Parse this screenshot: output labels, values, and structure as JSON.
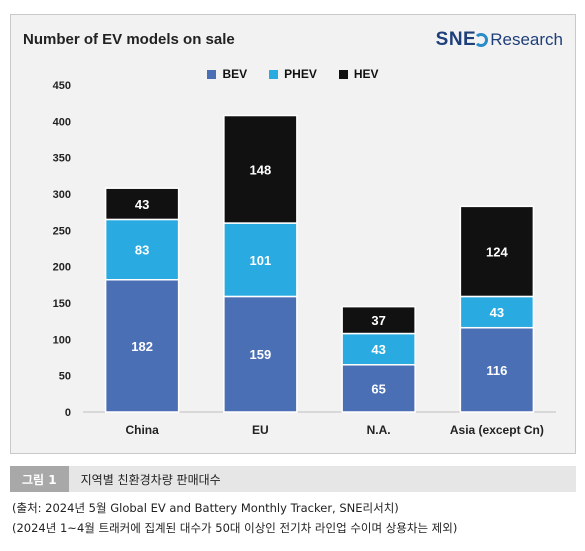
{
  "chart_data": {
    "type": "bar",
    "stacked": true,
    "title": "Number of EV models on sale",
    "categories": [
      "China",
      "EU",
      "N.A.",
      "Asia (except Cn)"
    ],
    "series": [
      {
        "name": "BEV",
        "values": [
          182,
          159,
          65,
          116
        ],
        "color": "#4a6fb5"
      },
      {
        "name": "PHEV",
        "values": [
          83,
          101,
          43,
          43
        ],
        "color": "#29abe2"
      },
      {
        "name": "HEV",
        "values": [
          43,
          148,
          37,
          124
        ],
        "color": "#111111"
      }
    ],
    "ylim": [
      0,
      450
    ],
    "yticks": [
      "0",
      "50",
      "100",
      "150",
      "200",
      "250",
      "300",
      "350",
      "400",
      "450"
    ],
    "grid": false,
    "legend": "top-center"
  },
  "logo": {
    "sne": "SNE",
    "research": "Research"
  },
  "figure": {
    "tag": "그림 1",
    "caption": "지역별 친환경차량 판매대수",
    "source": "(출처: 2024년 5월 Global EV and Battery Monthly Tracker, SNE리서치)",
    "note": "(2024년 1~4월 트래커에 집계된 대수가 50대 이상인 전기차 라인업 수이며 상용차는 제외)"
  }
}
